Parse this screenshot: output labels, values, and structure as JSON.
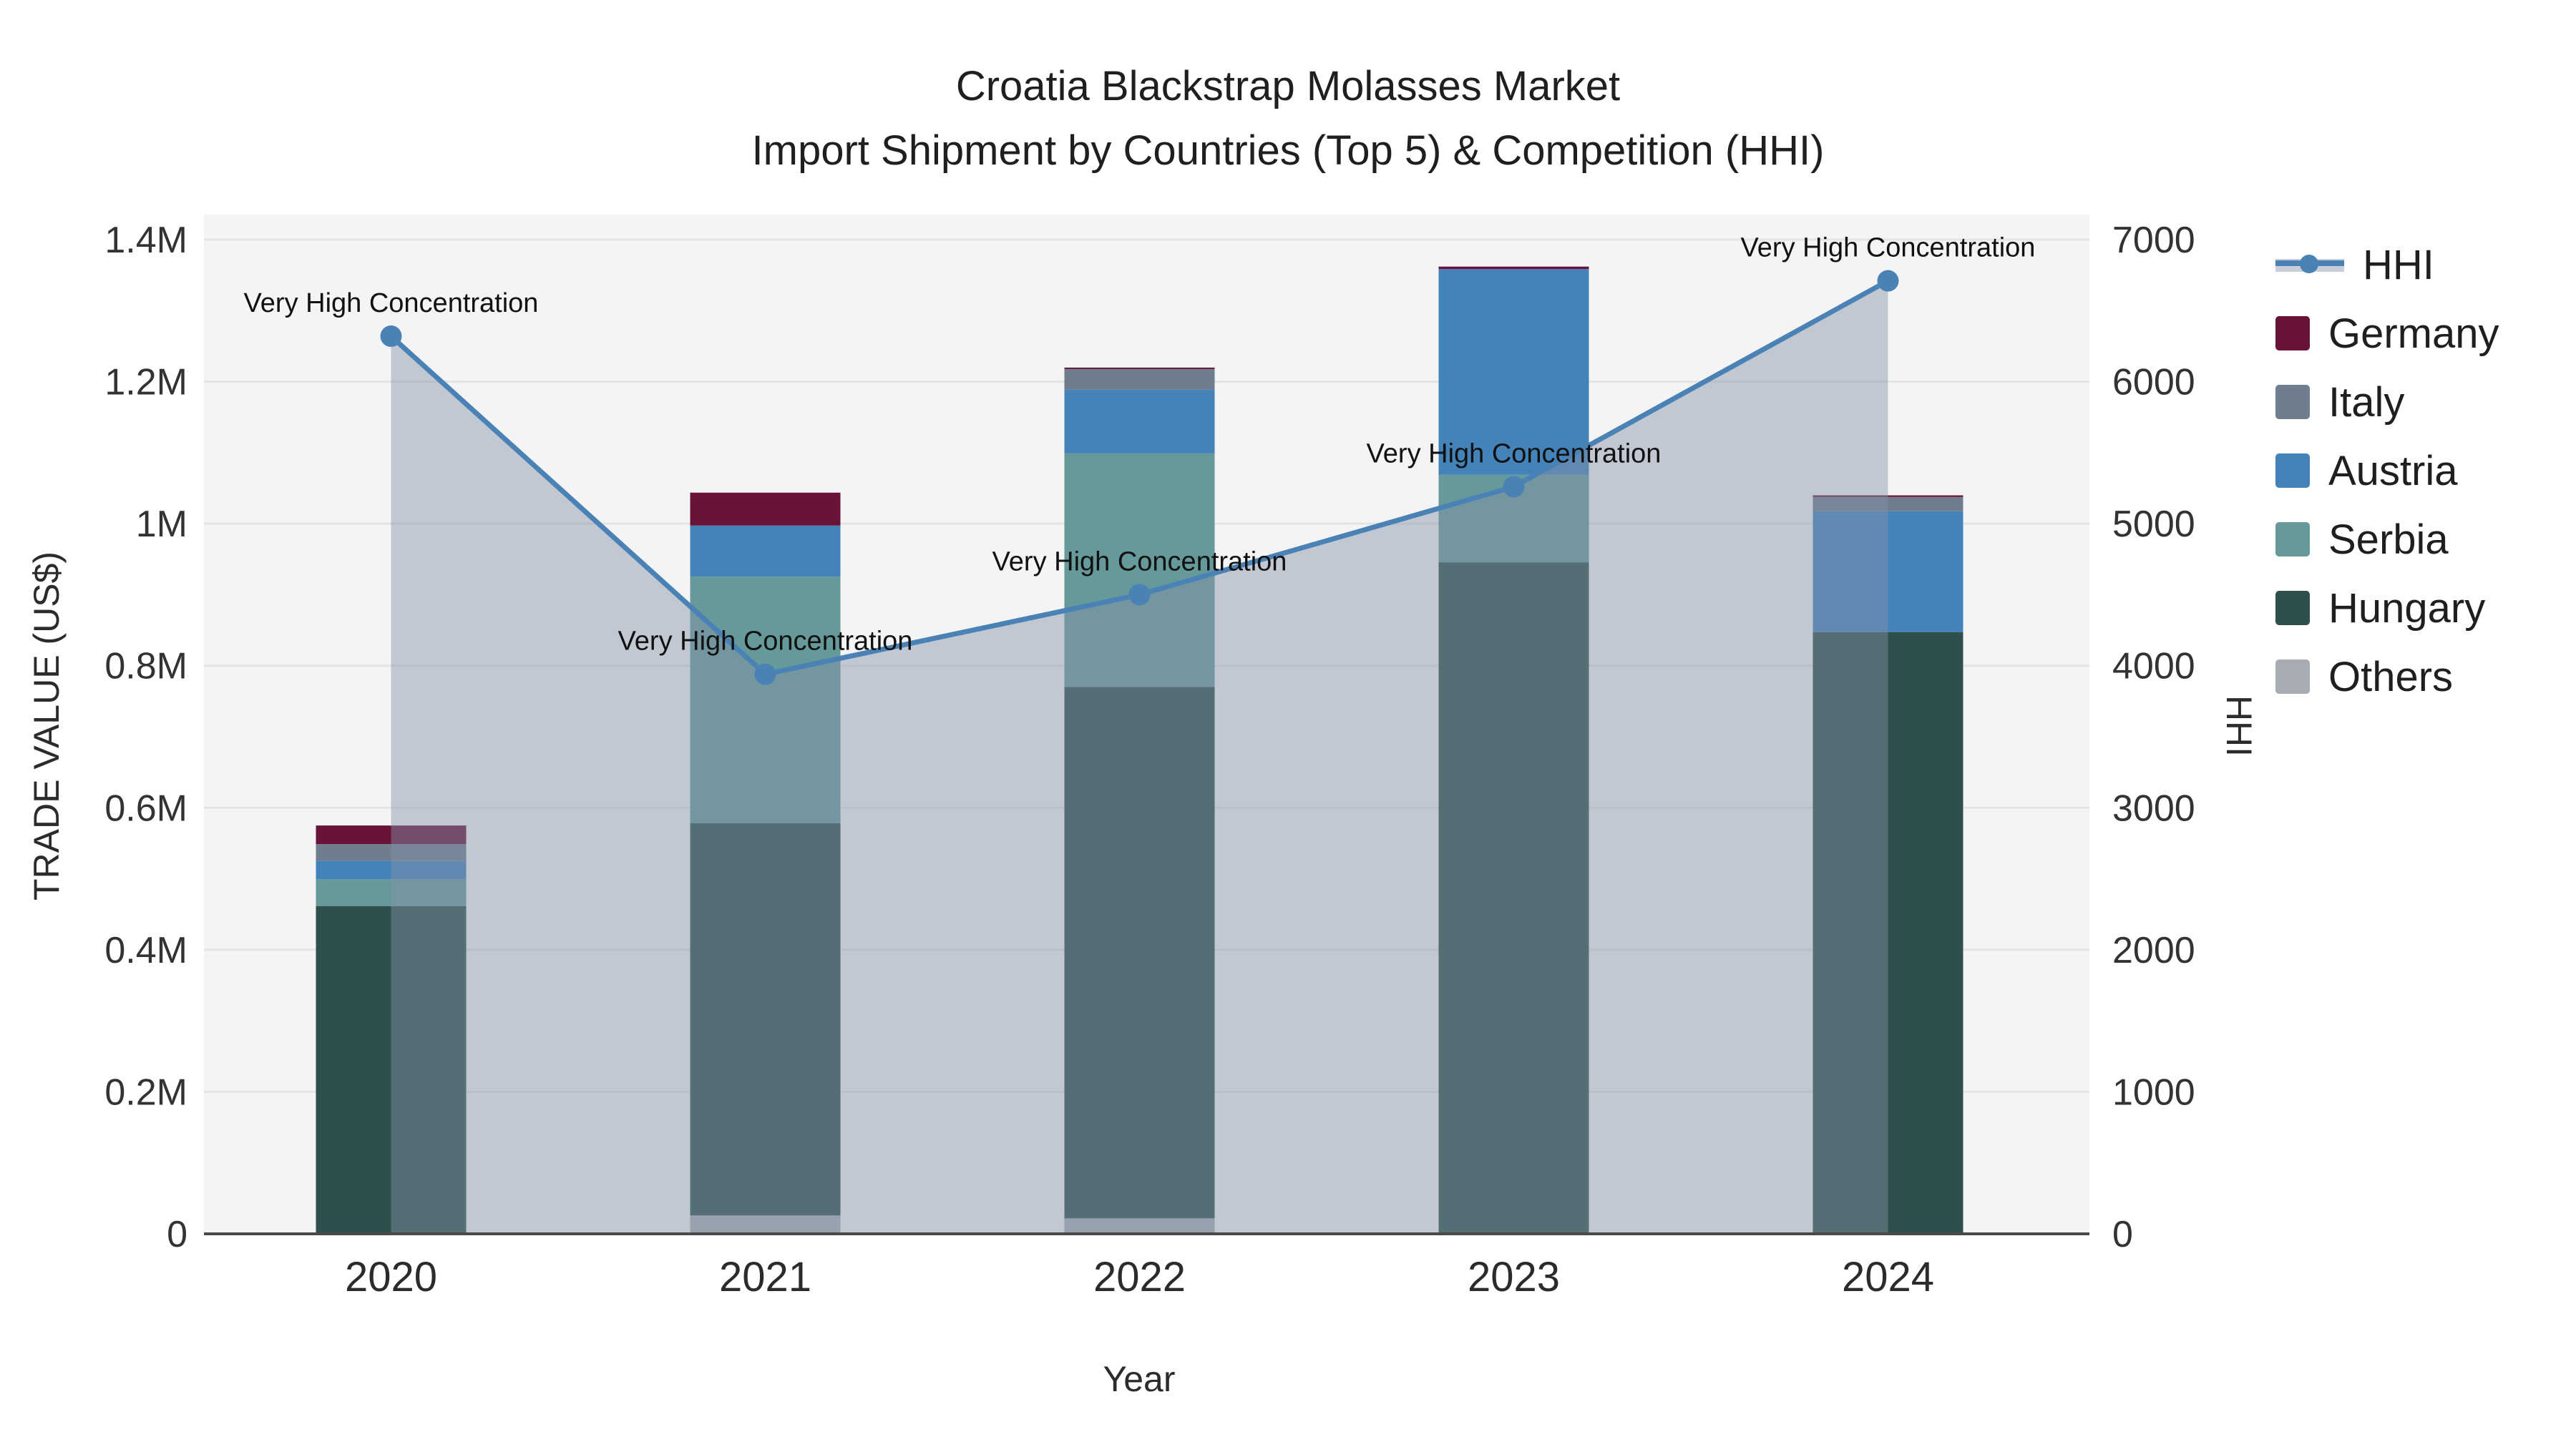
{
  "chart_data": {
    "type": "bar+line",
    "title_line1": "Croatia Blackstrap Molasses Market",
    "title_line2": "Import Shipment by Countries (Top 5) & Competition (HHI)",
    "xlabel": "Year",
    "ylabel_left": "TRADE VALUE (US$)",
    "ylabel_right": "HHI",
    "categories": [
      "2020",
      "2021",
      "2022",
      "2023",
      "2024"
    ],
    "stack_note": "bars stacked bottom-to-top as Others, Hungary, Serbia, Austria, Italy, Germany",
    "series": [
      {
        "name": "Germany",
        "color": "#681337",
        "values": [
          26200,
          46300,
          2000,
          3400,
          2300
        ]
      },
      {
        "name": "Italy",
        "color": "#6f7d8e",
        "values": [
          23700,
          0,
          29200,
          0,
          20100
        ]
      },
      {
        "name": "Austria",
        "color": "#4483ba",
        "values": [
          25700,
          71900,
          89600,
          289800,
          170100
        ]
      },
      {
        "name": "Serbia",
        "color": "#66999a",
        "values": [
          37800,
          347300,
          328900,
          123200,
          0
        ]
      },
      {
        "name": "Hungary",
        "color": "#2f4f4c",
        "values": [
          461600,
          552300,
          748300,
          945600,
          847400
        ]
      },
      {
        "name": "Others",
        "color": "#a8adb3",
        "values": [
          0,
          25900,
          21800,
          0,
          0
        ]
      }
    ],
    "hhi": {
      "name": "HHI",
      "line_color": "#4a82b6",
      "fill_color": "rgba(134,146,168,0.45)",
      "values": [
        6320,
        3940,
        4500,
        5260,
        6710
      ]
    },
    "annotation_text": "Very High Concentration",
    "y_left": {
      "min": 0,
      "max": 1400000,
      "tick_step": 200000,
      "tick_labels": [
        "0",
        "0.2M",
        "0.4M",
        "0.6M",
        "0.8M",
        "1M",
        "1.2M",
        "1.4M"
      ]
    },
    "y_right": {
      "min": 0,
      "max": 7000,
      "tick_step": 1000,
      "tick_labels": [
        "0",
        "1000",
        "2000",
        "3000",
        "4000",
        "5000",
        "6000",
        "7000"
      ]
    },
    "legend_order": [
      "HHI",
      "Germany",
      "Italy",
      "Austria",
      "Serbia",
      "Hungary",
      "Others"
    ],
    "colors": {
      "plot_background": "#f4f4f4",
      "gridline": "#e4e4e4",
      "axis_line": "#4a4a4a"
    }
  }
}
